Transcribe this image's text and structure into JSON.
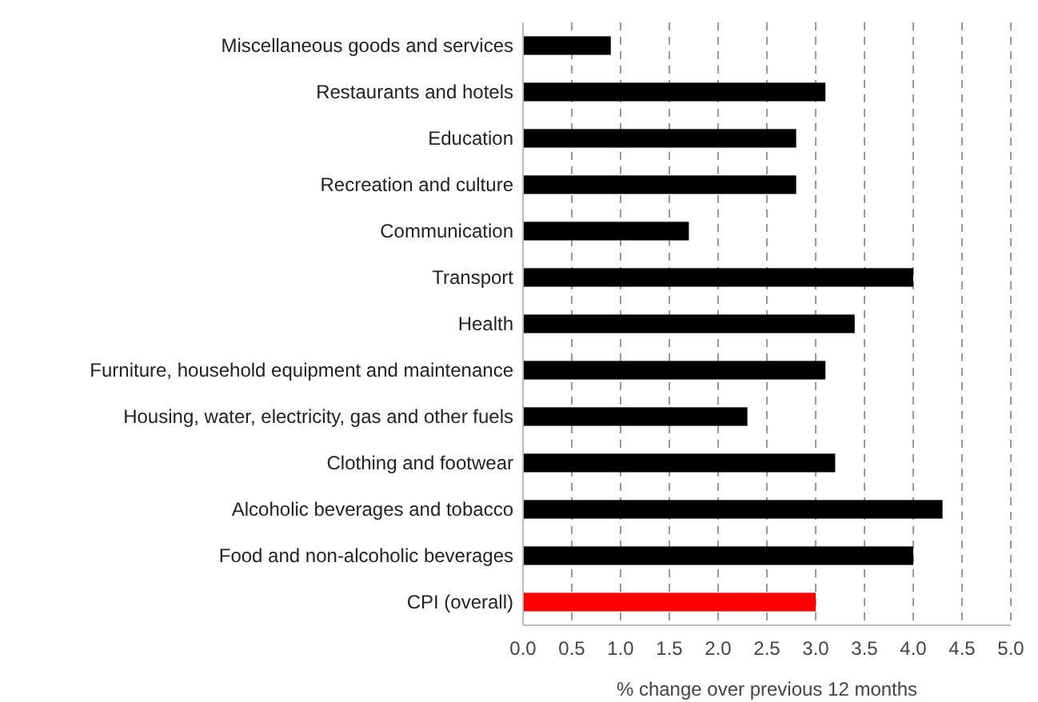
{
  "chart_data": {
    "type": "bar",
    "orientation": "horizontal",
    "xlabel": "% change over previous 12 months",
    "categories": [
      "Miscellaneous goods and services",
      "Restaurants and hotels",
      "Education",
      "Recreation and culture",
      "Communication",
      "Transport",
      "Health",
      "Furniture, household equipment and maintenance",
      "Housing, water, electricity, gas and other fuels",
      "Clothing and footwear",
      "Alcoholic beverages and tobacco",
      "Food and non-alcoholic beverages",
      "CPI (overall)"
    ],
    "values": [
      0.9,
      3.1,
      2.8,
      2.8,
      1.7,
      4.0,
      3.4,
      3.1,
      2.3,
      3.2,
      4.3,
      4.0,
      3.0
    ],
    "colors": [
      "#000000",
      "#000000",
      "#000000",
      "#000000",
      "#000000",
      "#000000",
      "#000000",
      "#000000",
      "#000000",
      "#000000",
      "#000000",
      "#000000",
      "#ff0000"
    ],
    "xlim": [
      0,
      5
    ],
    "xticks": [
      {
        "value": 0,
        "label": "0.0"
      },
      {
        "value": 0.5,
        "label": "0.5"
      },
      {
        "value": 1,
        "label": "1.0"
      },
      {
        "value": 1.5,
        "label": "1.5"
      },
      {
        "value": 2,
        "label": "2.0"
      },
      {
        "value": 2.5,
        "label": "2.5"
      },
      {
        "value": 3,
        "label": "3.0"
      },
      {
        "value": 3.5,
        "label": "3.5"
      },
      {
        "value": 4,
        "label": "4.0"
      },
      {
        "value": 4.5,
        "label": "4.5"
      },
      {
        "value": 5,
        "label": "5.0"
      }
    ],
    "grid": "x"
  }
}
